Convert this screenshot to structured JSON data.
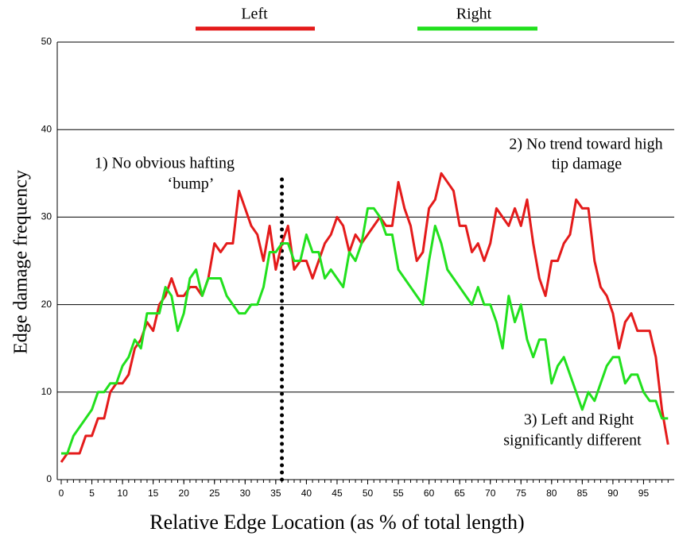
{
  "chart_data": {
    "type": "line",
    "x_label": "Relative Edge Location (as % of total length)",
    "y_label": "Edge damage frequency",
    "x": [
      0,
      1,
      2,
      3,
      4,
      5,
      6,
      7,
      8,
      9,
      10,
      11,
      12,
      13,
      14,
      15,
      16,
      17,
      18,
      19,
      20,
      21,
      22,
      23,
      24,
      25,
      26,
      27,
      28,
      29,
      30,
      31,
      32,
      33,
      34,
      35,
      36,
      37,
      38,
      39,
      40,
      41,
      42,
      43,
      44,
      45,
      46,
      47,
      48,
      49,
      50,
      51,
      52,
      53,
      54,
      55,
      56,
      57,
      58,
      59,
      60,
      61,
      62,
      63,
      64,
      65,
      66,
      67,
      68,
      69,
      70,
      71,
      72,
      73,
      74,
      75,
      76,
      77,
      78,
      79,
      80,
      81,
      82,
      83,
      84,
      85,
      86,
      87,
      88,
      89,
      90,
      91,
      92,
      93,
      94,
      95,
      96,
      97,
      98,
      99
    ],
    "series": [
      {
        "name": "Left",
        "color": "#e41b1b",
        "values": [
          2,
          3,
          3,
          3,
          5,
          5,
          7,
          7,
          10,
          11,
          11,
          12,
          15,
          16,
          18,
          17,
          20,
          21,
          23,
          21,
          21,
          22,
          22,
          21,
          23,
          27,
          26,
          27,
          27,
          33,
          31,
          29,
          28,
          25,
          29,
          24,
          27,
          29,
          24,
          25,
          25,
          23,
          25,
          27,
          28,
          30,
          29,
          26,
          28,
          27,
          28,
          29,
          30,
          29,
          29,
          34,
          31,
          29,
          25,
          26,
          31,
          32,
          35,
          34,
          33,
          29,
          29,
          26,
          27,
          25,
          27,
          31,
          30,
          29,
          31,
          29,
          32,
          27,
          23,
          21,
          25,
          25,
          27,
          28,
          32,
          31,
          31,
          25,
          22,
          21,
          19,
          15,
          18,
          19,
          17,
          17,
          17,
          14,
          8,
          4
        ]
      },
      {
        "name": "Right",
        "color": "#22e01e",
        "values": [
          3,
          3,
          5,
          6,
          7,
          8,
          10,
          10,
          11,
          11,
          13,
          14,
          16,
          15,
          19,
          19,
          19,
          22,
          21,
          17,
          19,
          23,
          24,
          21,
          23,
          23,
          23,
          21,
          20,
          19,
          19,
          20,
          20,
          22,
          26,
          26,
          27,
          27,
          25,
          25,
          28,
          26,
          26,
          23,
          24,
          23,
          22,
          26,
          25,
          27,
          31,
          31,
          30,
          28,
          28,
          24,
          23,
          22,
          21,
          20,
          25,
          29,
          27,
          24,
          23,
          22,
          21,
          20,
          22,
          20,
          20,
          18,
          15,
          21,
          18,
          20,
          16,
          14,
          16,
          16,
          11,
          13,
          14,
          12,
          10,
          8,
          10,
          9,
          11,
          13,
          14,
          14,
          11,
          12,
          12,
          10,
          9,
          9,
          7,
          7
        ]
      }
    ],
    "marker_line": {
      "x": 36,
      "y": 35
    },
    "annotations": [
      {
        "lines": [
          "1) No obvious hafting",
          "‘bump’"
        ]
      },
      {
        "lines": [
          "2) No trend toward high",
          "tip damage"
        ]
      },
      {
        "lines": [
          "3) Left and Right",
          "significantly different"
        ]
      }
    ],
    "xlim": [
      0,
      100
    ],
    "xticks": [
      0,
      5,
      10,
      15,
      20,
      25,
      30,
      35,
      40,
      45,
      50,
      55,
      60,
      65,
      70,
      75,
      80,
      85,
      90,
      95
    ],
    "ylim": [
      0,
      50
    ],
    "yticks": [
      0,
      10,
      20,
      30,
      40,
      50
    ],
    "grid": true
  }
}
